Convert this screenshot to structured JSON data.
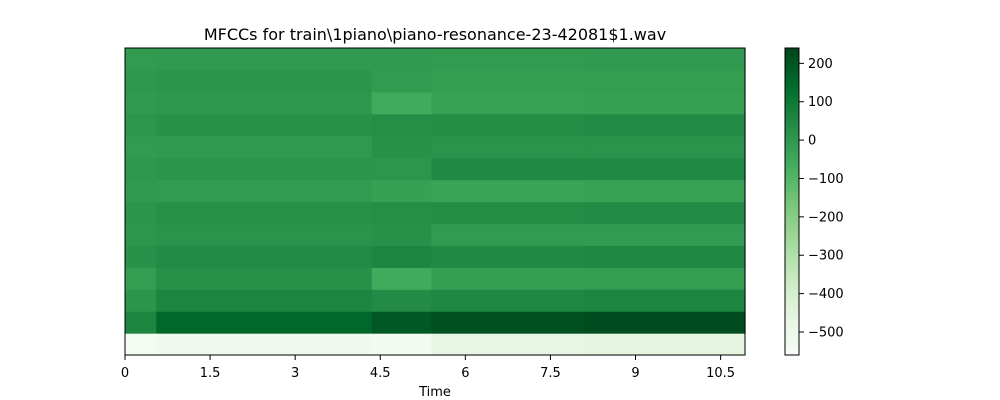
{
  "chart_data": {
    "type": "heatmap",
    "title": "MFCCs for train\\1piano\\piano-resonance-23-42081$1.wav",
    "xlabel": "Time",
    "ylabel": "",
    "xlim": [
      0,
      10.93
    ],
    "x_ticks": [
      0,
      1.5,
      3,
      4.5,
      6,
      7.5,
      9,
      10.5
    ],
    "x_tick_labels": [
      "0",
      "1.5",
      "3",
      "4.5",
      "6",
      "7.5",
      "9",
      "10.5"
    ],
    "y_axis_visible": false,
    "n_coefficients": 14,
    "colormap": "Greens",
    "colormap_stops": [
      "#f7fcf5",
      "#e5f5e0",
      "#c7e9c0",
      "#a1d99b",
      "#74c476",
      "#41ab5d",
      "#238b45",
      "#006d2c",
      "#00441b"
    ],
    "color_range": [
      -560,
      240
    ],
    "colorbar_ticks": [
      200,
      100,
      0,
      -100,
      -200,
      -300,
      -400,
      -500
    ],
    "colorbar_tick_labels": [
      "200",
      "100",
      "0",
      "−100",
      "−200",
      "−300",
      "−400",
      "−500"
    ],
    "segments": [
      {
        "start": 0.0,
        "end": 0.55,
        "values": [
          -545,
          60,
          10,
          -15,
          20,
          5,
          10,
          -5,
          0,
          -10,
          5,
          -5,
          0,
          -10
        ]
      },
      {
        "start": 0.55,
        "end": 4.35,
        "values": [
          -520,
          150,
          60,
          25,
          40,
          15,
          25,
          -10,
          10,
          -5,
          20,
          0,
          10,
          -5
        ]
      },
      {
        "start": 4.35,
        "end": 5.4,
        "values": [
          -540,
          190,
          40,
          -60,
          60,
          25,
          30,
          -25,
          5,
          20,
          30,
          -60,
          -10,
          -5
        ]
      },
      {
        "start": 5.4,
        "end": 8.1,
        "values": [
          -470,
          210,
          55,
          -20,
          45,
          -10,
          35,
          -35,
          45,
          15,
          35,
          -30,
          -20,
          -10
        ]
      },
      {
        "start": 8.1,
        "end": 10.93,
        "values": [
          -460,
          220,
          60,
          -15,
          50,
          -10,
          40,
          -30,
          45,
          15,
          40,
          -25,
          -15,
          -5
        ]
      }
    ]
  }
}
